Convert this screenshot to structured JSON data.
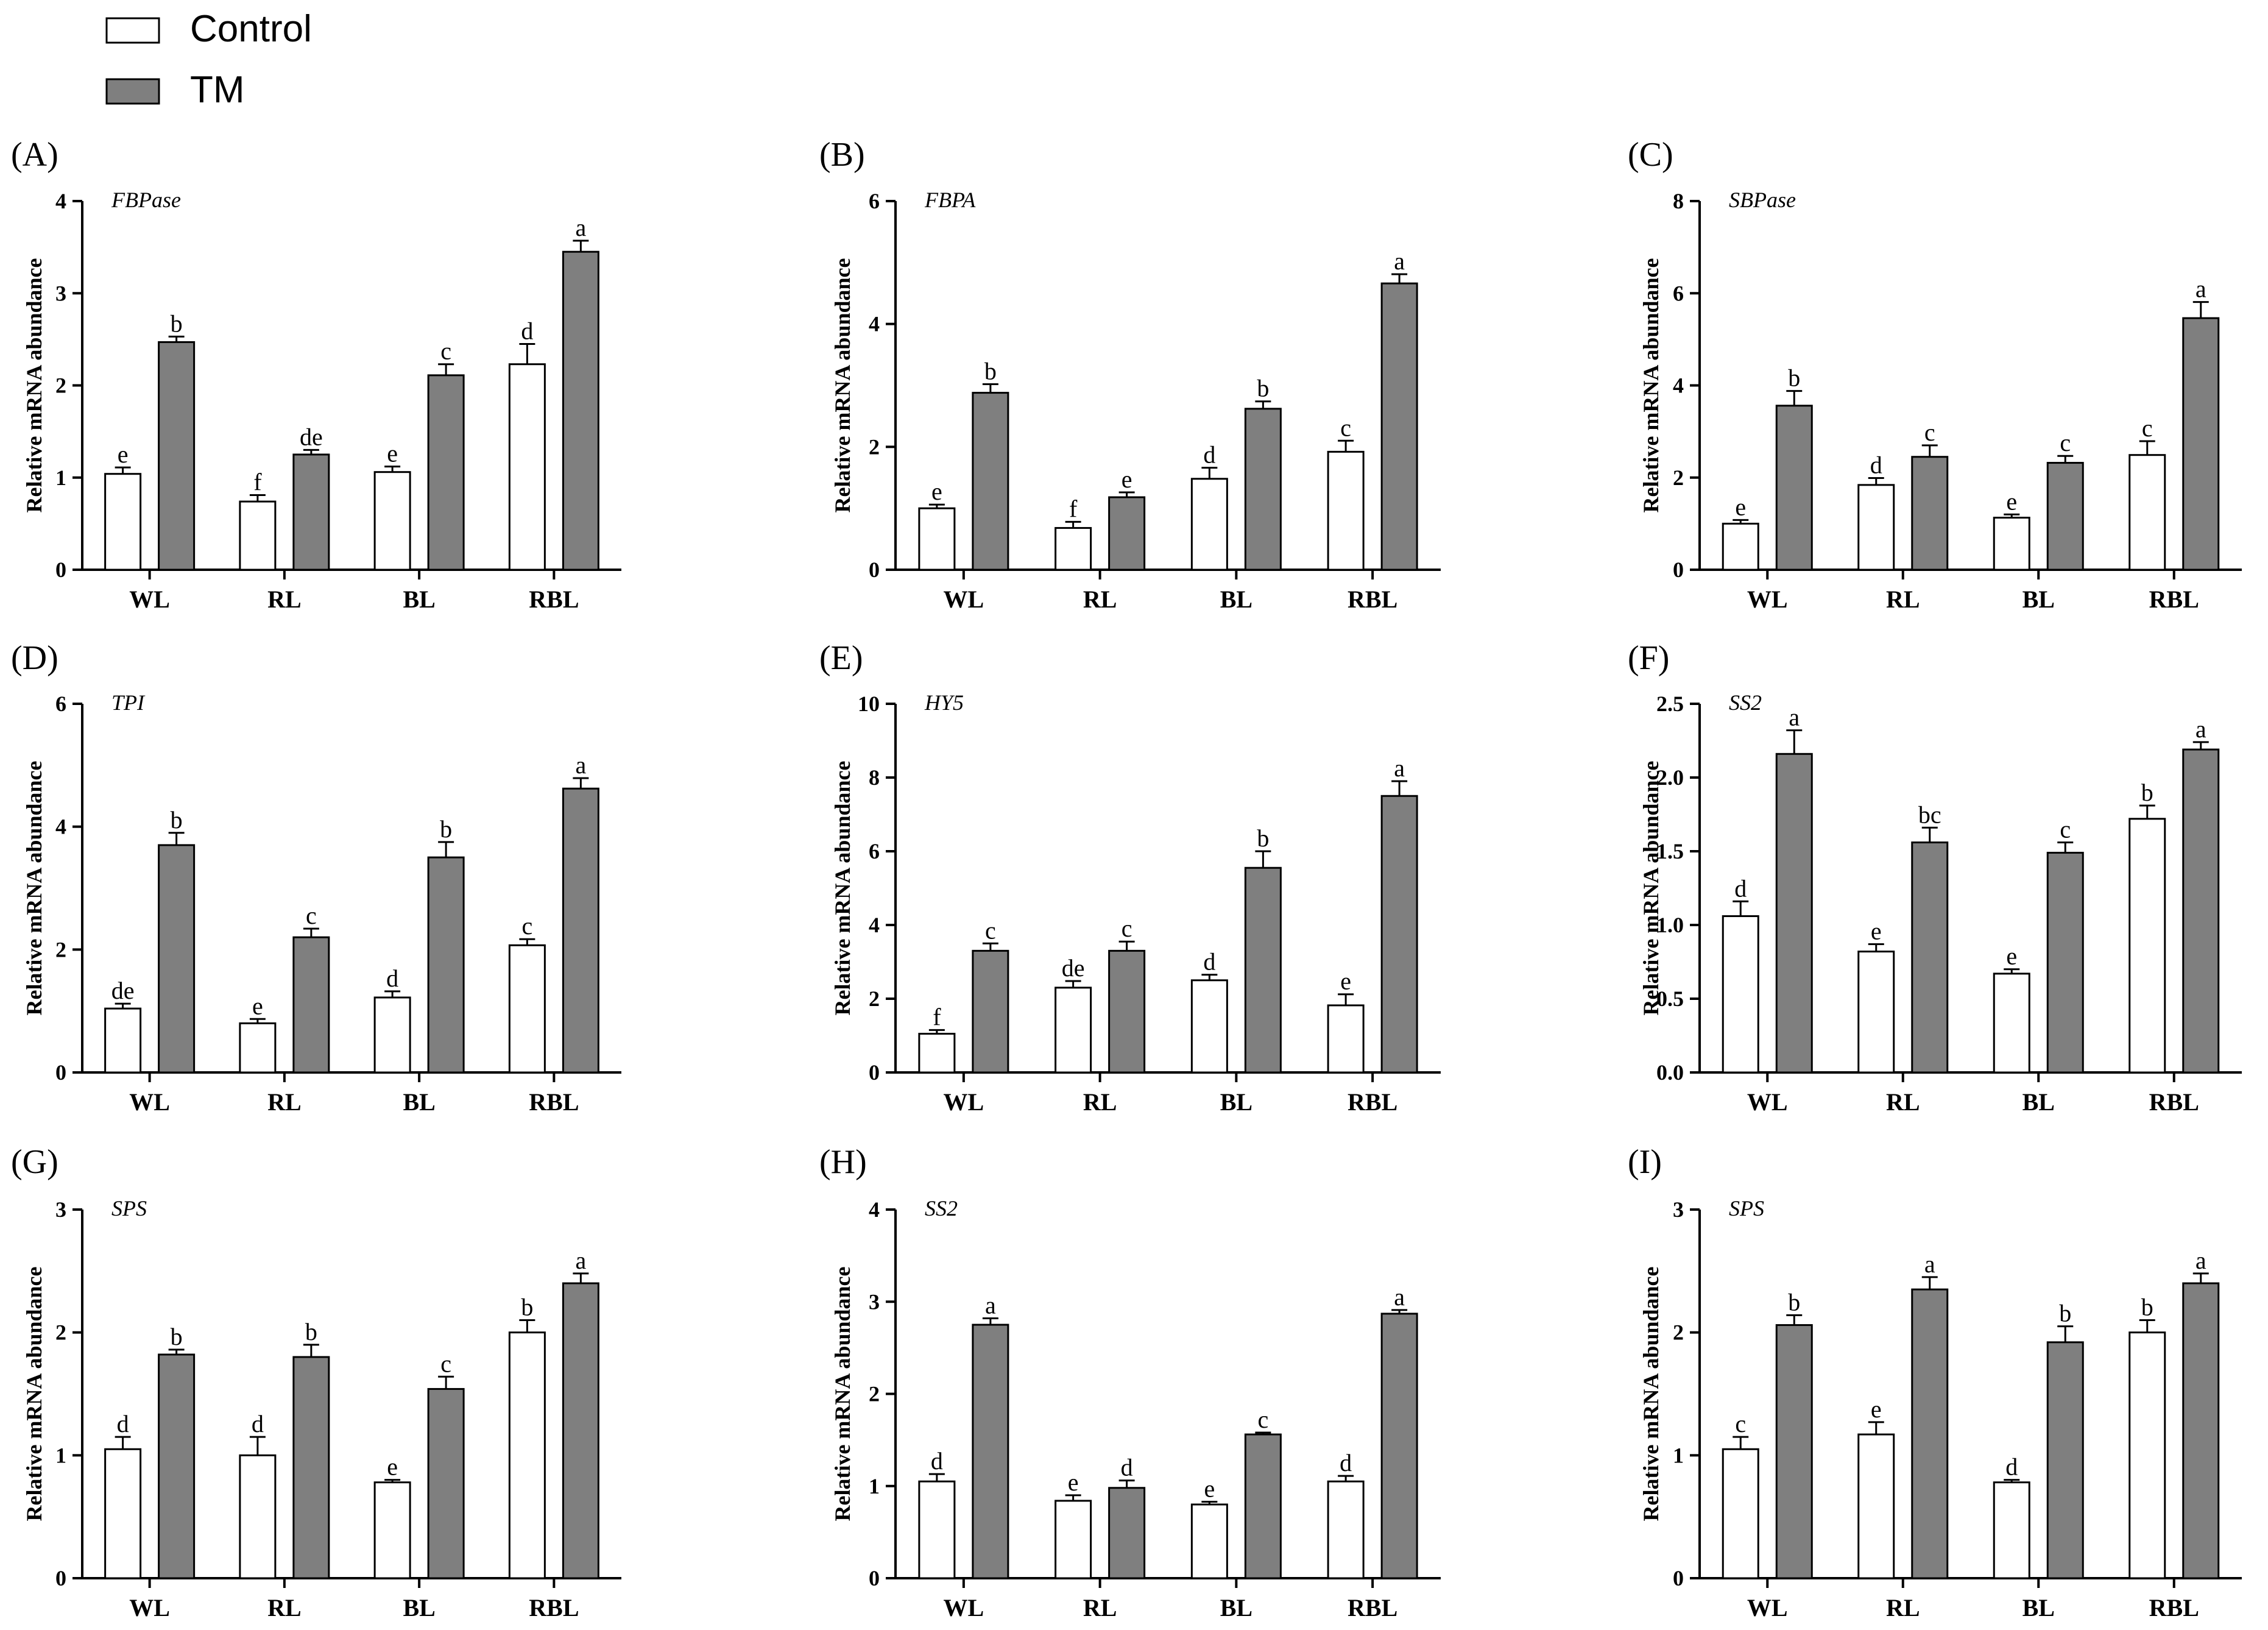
{
  "colors": {
    "control": "#ffffff",
    "tm": "#7f7f7f",
    "axis": "#000000"
  },
  "legend": [
    {
      "label": "Control",
      "color": "#ffffff"
    },
    {
      "label": "TM",
      "color": "#7f7f7f"
    }
  ],
  "chart_data": [
    {
      "type": "bar",
      "panel": "(A)",
      "title": "FBPase",
      "ylabel": "Relative mRNA abundance",
      "categories": [
        "WL",
        "RL",
        "BL",
        "RBL"
      ],
      "ylim": [
        0,
        4
      ],
      "yticks": [
        "0",
        "1",
        "2",
        "3",
        "4"
      ],
      "series": [
        {
          "name": "Control",
          "values": [
            1.04,
            0.74,
            1.06,
            2.23
          ],
          "errors": [
            0.07,
            0.07,
            0.06,
            0.22
          ],
          "letters": [
            "e",
            "f",
            "e",
            "d"
          ]
        },
        {
          "name": "TM",
          "values": [
            2.47,
            1.25,
            2.11,
            3.45
          ],
          "errors": [
            0.06,
            0.05,
            0.12,
            0.12
          ],
          "letters": [
            "b",
            "de",
            "c",
            "a"
          ]
        }
      ]
    },
    {
      "type": "bar",
      "panel": "(B)",
      "title": "FBPA",
      "ylabel": "Relative mRNA abundance",
      "categories": [
        "WL",
        "RL",
        "BL",
        "RBL"
      ],
      "ylim": [
        0,
        6
      ],
      "yticks": [
        "0",
        "2",
        "4",
        "6"
      ],
      "series": [
        {
          "name": "Control",
          "values": [
            1.0,
            0.68,
            1.48,
            1.92
          ],
          "errors": [
            0.06,
            0.1,
            0.18,
            0.18
          ],
          "letters": [
            "e",
            "f",
            "d",
            "c"
          ]
        },
        {
          "name": "TM",
          "values": [
            2.88,
            1.18,
            2.62,
            4.66
          ],
          "errors": [
            0.14,
            0.08,
            0.12,
            0.15
          ],
          "letters": [
            "b",
            "e",
            "b",
            "a"
          ]
        }
      ]
    },
    {
      "type": "bar",
      "panel": "(C)",
      "title": "SBPase",
      "ylabel": "Relative mRNA abundance",
      "categories": [
        "WL",
        "RL",
        "BL",
        "RBL"
      ],
      "ylim": [
        0,
        8
      ],
      "yticks": [
        "0",
        "2",
        "4",
        "6",
        "8"
      ],
      "series": [
        {
          "name": "Control",
          "values": [
            1.0,
            1.84,
            1.13,
            2.49
          ],
          "errors": [
            0.08,
            0.15,
            0.07,
            0.3
          ],
          "letters": [
            "e",
            "d",
            "e",
            "c"
          ]
        },
        {
          "name": "TM",
          "values": [
            3.56,
            2.45,
            2.32,
            5.46
          ],
          "errors": [
            0.32,
            0.25,
            0.15,
            0.35
          ],
          "letters": [
            "b",
            "c",
            "c",
            "a"
          ]
        }
      ]
    },
    {
      "type": "bar",
      "panel": "(D)",
      "title": "TPI",
      "ylabel": "Relative mRNA abundance",
      "categories": [
        "WL",
        "RL",
        "BL",
        "RBL"
      ],
      "ylim": [
        0,
        6
      ],
      "yticks": [
        "0",
        "2",
        "4",
        "6"
      ],
      "series": [
        {
          "name": "Control",
          "values": [
            1.04,
            0.8,
            1.22,
            2.07
          ],
          "errors": [
            0.08,
            0.07,
            0.1,
            0.1
          ],
          "letters": [
            "de",
            "e",
            "d",
            "c"
          ]
        },
        {
          "name": "TM",
          "values": [
            3.7,
            2.2,
            3.5,
            4.62
          ],
          "errors": [
            0.2,
            0.14,
            0.25,
            0.17
          ],
          "letters": [
            "b",
            "c",
            "b",
            "a"
          ]
        }
      ]
    },
    {
      "type": "bar",
      "panel": "(E)",
      "title": "HY5",
      "ylabel": "Relative mRNA abundance",
      "categories": [
        "WL",
        "RL",
        "BL",
        "RBL"
      ],
      "ylim": [
        0,
        10
      ],
      "yticks": [
        "0",
        "2",
        "4",
        "6",
        "8",
        "10"
      ],
      "series": [
        {
          "name": "Control",
          "values": [
            1.05,
            2.3,
            2.5,
            1.82
          ],
          "errors": [
            0.1,
            0.18,
            0.15,
            0.3
          ],
          "letters": [
            "f",
            "de",
            "d",
            "e"
          ]
        },
        {
          "name": "TM",
          "values": [
            3.3,
            3.3,
            5.55,
            7.5
          ],
          "errors": [
            0.2,
            0.25,
            0.45,
            0.4
          ],
          "letters": [
            "c",
            "c",
            "b",
            "a"
          ]
        }
      ]
    },
    {
      "type": "bar",
      "panel": "(F)",
      "title": "SS2",
      "ylabel": "Relative mRNA abundance",
      "categories": [
        "WL",
        "RL",
        "BL",
        "RBL"
      ],
      "ylim": [
        0,
        2.5
      ],
      "yticks": [
        "0.0",
        "0.5",
        "1.0",
        "1.5",
        "2.0",
        "2.5"
      ],
      "series": [
        {
          "name": "Control",
          "values": [
            1.06,
            0.82,
            0.67,
            1.72
          ],
          "errors": [
            0.1,
            0.05,
            0.03,
            0.09
          ],
          "letters": [
            "d",
            "e",
            "e",
            "b"
          ]
        },
        {
          "name": "TM",
          "values": [
            2.16,
            1.56,
            1.49,
            2.19
          ],
          "errors": [
            0.16,
            0.1,
            0.07,
            0.05
          ],
          "letters": [
            "a",
            "bc",
            "c",
            "a"
          ]
        }
      ]
    },
    {
      "type": "bar",
      "panel": "(G)",
      "title": "SPS",
      "ylabel": "Relative mRNA abundance",
      "categories": [
        "WL",
        "RL",
        "BL",
        "RBL"
      ],
      "ylim": [
        0,
        3
      ],
      "yticks": [
        "0",
        "1",
        "2",
        "3"
      ],
      "series": [
        {
          "name": "Control",
          "values": [
            1.05,
            1.0,
            0.78,
            2.0
          ],
          "errors": [
            0.1,
            0.15,
            0.02,
            0.1
          ],
          "letters": [
            "d",
            "d",
            "e",
            "b"
          ]
        },
        {
          "name": "TM",
          "values": [
            1.82,
            1.8,
            1.54,
            2.4
          ],
          "errors": [
            0.04,
            0.1,
            0.1,
            0.08
          ],
          "letters": [
            "b",
            "b",
            "c",
            "a"
          ]
        }
      ]
    },
    {
      "type": "bar",
      "panel": "(H)",
      "title": "SS2",
      "ylabel": "Relative mRNA abundance",
      "categories": [
        "WL",
        "RL",
        "BL",
        "RBL"
      ],
      "ylim": [
        0,
        4
      ],
      "yticks": [
        "0",
        "1",
        "2",
        "3",
        "4"
      ],
      "series": [
        {
          "name": "Control",
          "values": [
            1.05,
            0.84,
            0.8,
            1.05
          ],
          "errors": [
            0.08,
            0.06,
            0.03,
            0.06
          ],
          "letters": [
            "d",
            "e",
            "e",
            "d"
          ]
        },
        {
          "name": "TM",
          "values": [
            2.75,
            0.98,
            1.56,
            2.87
          ],
          "errors": [
            0.07,
            0.08,
            0.02,
            0.04
          ],
          "letters": [
            "a",
            "d",
            "c",
            "a"
          ]
        }
      ]
    },
    {
      "type": "bar",
      "panel": "(I)",
      "title": "SPS",
      "ylabel": "Relative mRNA abundance",
      "categories": [
        "WL",
        "RL",
        "BL",
        "RBL"
      ],
      "ylim": [
        0,
        3
      ],
      "yticks": [
        "0",
        "1",
        "2",
        "3"
      ],
      "series": [
        {
          "name": "Control",
          "values": [
            1.05,
            1.17,
            0.78,
            2.0
          ],
          "errors": [
            0.1,
            0.1,
            0.02,
            0.1
          ],
          "letters": [
            "c",
            "e",
            "d",
            "b"
          ]
        },
        {
          "name": "TM",
          "values": [
            2.06,
            2.35,
            1.92,
            2.4
          ],
          "errors": [
            0.08,
            0.1,
            0.13,
            0.08
          ],
          "letters": [
            "b",
            "a",
            "b",
            "a"
          ]
        }
      ]
    }
  ]
}
